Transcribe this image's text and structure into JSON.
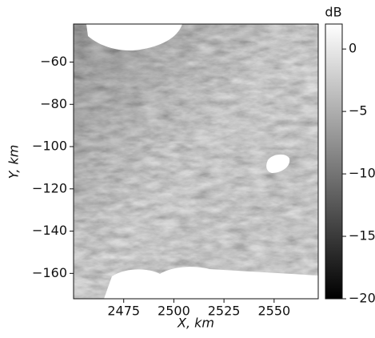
{
  "chart_data": {
    "type": "image",
    "xlabel": "X, km",
    "ylabel": "Y, km",
    "xlim": [
      2450,
      2572
    ],
    "ylim": [
      -172,
      -42
    ],
    "xticks": [
      2475,
      2500,
      2525,
      2550
    ],
    "yticks": [
      {
        "value": -60,
        "label": "−60"
      },
      {
        "value": -80,
        "label": "−80"
      },
      {
        "value": -100,
        "label": "−100"
      },
      {
        "value": -120,
        "label": "−120"
      },
      {
        "value": -140,
        "label": "−140"
      },
      {
        "value": -160,
        "label": "−160"
      }
    ],
    "colorbar": {
      "label": "dB",
      "clim": [
        -20,
        2
      ],
      "colors": [
        "#000000",
        "#ffffff"
      ],
      "ticks": [
        0,
        {
          "value": -5,
          "label": "−5"
        },
        {
          "value": -10,
          "label": "−10"
        },
        {
          "value": -15,
          "label": "−15"
        },
        {
          "value": -20,
          "label": "−20"
        }
      ]
    }
  }
}
